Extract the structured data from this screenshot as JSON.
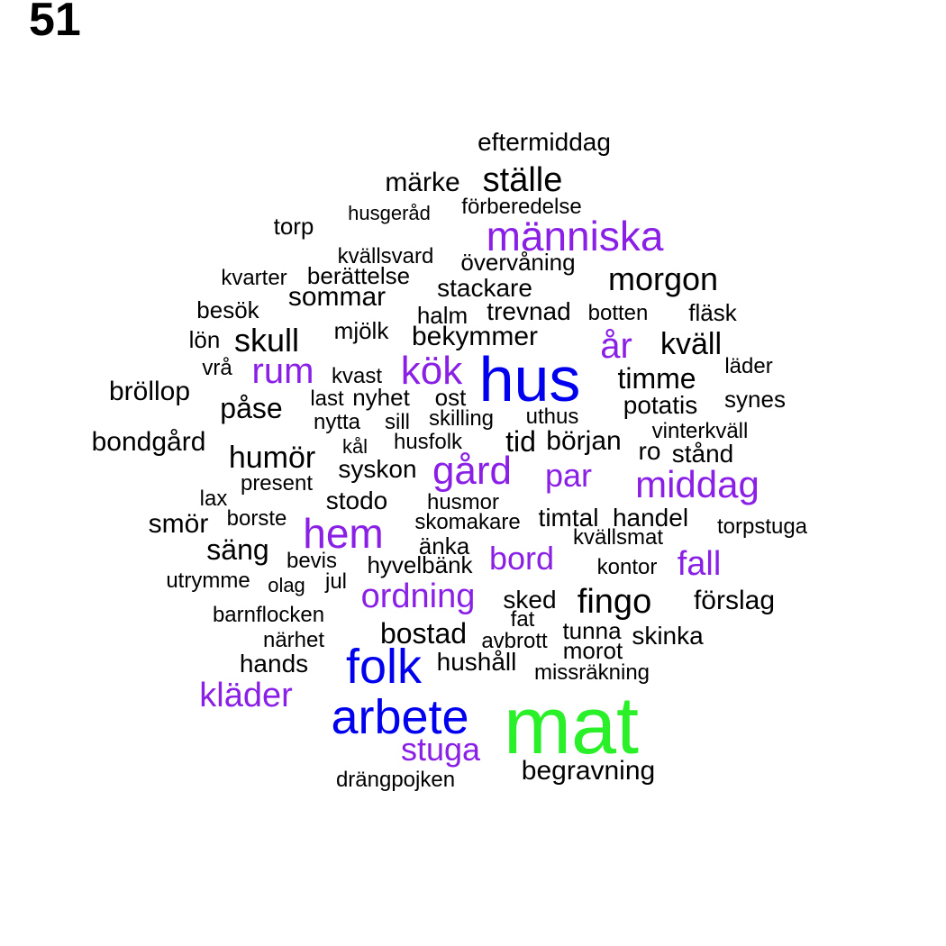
{
  "page_number": "51",
  "colors": {
    "large": "#2af02a",
    "mid": "#0000ee",
    "accent": "#8a1fe6",
    "base": "#000000"
  },
  "words": [
    {
      "t": "mat",
      "c": "large"
    },
    {
      "t": "hus",
      "c": "mid"
    },
    {
      "t": "arbete",
      "c": "mid"
    },
    {
      "t": "folk",
      "c": "mid"
    },
    {
      "t": "människa",
      "c": "accent"
    },
    {
      "t": "kök",
      "c": "accent"
    },
    {
      "t": "gård",
      "c": "accent"
    },
    {
      "t": "hem",
      "c": "accent"
    },
    {
      "t": "middag",
      "c": "accent"
    },
    {
      "t": "ordning",
      "c": "accent"
    },
    {
      "t": "kläder",
      "c": "accent"
    },
    {
      "t": "stuga",
      "c": "accent"
    },
    {
      "t": "rum",
      "c": "accent"
    },
    {
      "t": "år",
      "c": "accent"
    },
    {
      "t": "par",
      "c": "accent"
    },
    {
      "t": "bord",
      "c": "accent"
    },
    {
      "t": "fall",
      "c": "accent"
    },
    {
      "t": "eftermiddag",
      "c": "base"
    },
    {
      "t": "märke",
      "c": "base"
    },
    {
      "t": "ställe",
      "c": "base"
    },
    {
      "t": "husgeråd",
      "c": "base"
    },
    {
      "t": "förberedelse",
      "c": "base"
    },
    {
      "t": "torp",
      "c": "base"
    },
    {
      "t": "kvällsvard",
      "c": "base"
    },
    {
      "t": "övervåning",
      "c": "base"
    },
    {
      "t": "kvarter",
      "c": "base"
    },
    {
      "t": "berättelse",
      "c": "base"
    },
    {
      "t": "morgon",
      "c": "base"
    },
    {
      "t": "stackare",
      "c": "base"
    },
    {
      "t": "sommar",
      "c": "base"
    },
    {
      "t": "besök",
      "c": "base"
    },
    {
      "t": "halm",
      "c": "base"
    },
    {
      "t": "trevnad",
      "c": "base"
    },
    {
      "t": "botten",
      "c": "base"
    },
    {
      "t": "fläsk",
      "c": "base"
    },
    {
      "t": "lön",
      "c": "base"
    },
    {
      "t": "skull",
      "c": "base"
    },
    {
      "t": "mjölk",
      "c": "base"
    },
    {
      "t": "bekymmer",
      "c": "base"
    },
    {
      "t": "kväll",
      "c": "base"
    },
    {
      "t": "vrå",
      "c": "base"
    },
    {
      "t": "kvast",
      "c": "base"
    },
    {
      "t": "läder",
      "c": "base"
    },
    {
      "t": "bröllop",
      "c": "base"
    },
    {
      "t": "timme",
      "c": "base"
    },
    {
      "t": "last",
      "c": "base"
    },
    {
      "t": "nyhet",
      "c": "base"
    },
    {
      "t": "ost",
      "c": "base"
    },
    {
      "t": "påse",
      "c": "base"
    },
    {
      "t": "synes",
      "c": "base"
    },
    {
      "t": "potatis",
      "c": "base"
    },
    {
      "t": "nytta",
      "c": "base"
    },
    {
      "t": "sill",
      "c": "base"
    },
    {
      "t": "skilling",
      "c": "base"
    },
    {
      "t": "uthus",
      "c": "base"
    },
    {
      "t": "vinterkväll",
      "c": "base"
    },
    {
      "t": "bondgård",
      "c": "base"
    },
    {
      "t": "kål",
      "c": "base"
    },
    {
      "t": "husfolk",
      "c": "base"
    },
    {
      "t": "tid",
      "c": "base"
    },
    {
      "t": "början",
      "c": "base"
    },
    {
      "t": "ro",
      "c": "base"
    },
    {
      "t": "stånd",
      "c": "base"
    },
    {
      "t": "humör",
      "c": "base"
    },
    {
      "t": "syskon",
      "c": "base"
    },
    {
      "t": "present",
      "c": "base"
    },
    {
      "t": "lax",
      "c": "base"
    },
    {
      "t": "stodo",
      "c": "base"
    },
    {
      "t": "husmor",
      "c": "base"
    },
    {
      "t": "smör",
      "c": "base"
    },
    {
      "t": "borste",
      "c": "base"
    },
    {
      "t": "skomakare",
      "c": "base"
    },
    {
      "t": "timtal",
      "c": "base"
    },
    {
      "t": "handel",
      "c": "base"
    },
    {
      "t": "torpstuga",
      "c": "base"
    },
    {
      "t": "kvällsmat",
      "c": "base"
    },
    {
      "t": "säng",
      "c": "base"
    },
    {
      "t": "änka",
      "c": "base"
    },
    {
      "t": "bevis",
      "c": "base"
    },
    {
      "t": "hyvelbänk",
      "c": "base"
    },
    {
      "t": "kontor",
      "c": "base"
    },
    {
      "t": "utrymme",
      "c": "base"
    },
    {
      "t": "olag",
      "c": "base"
    },
    {
      "t": "jul",
      "c": "base"
    },
    {
      "t": "sked",
      "c": "base"
    },
    {
      "t": "fingo",
      "c": "base"
    },
    {
      "t": "förslag",
      "c": "base"
    },
    {
      "t": "barnflocken",
      "c": "base"
    },
    {
      "t": "fat",
      "c": "base"
    },
    {
      "t": "bostad",
      "c": "base"
    },
    {
      "t": "tunna",
      "c": "base"
    },
    {
      "t": "skinka",
      "c": "base"
    },
    {
      "t": "närhet",
      "c": "base"
    },
    {
      "t": "avbrott",
      "c": "base"
    },
    {
      "t": "morot",
      "c": "base"
    },
    {
      "t": "hands",
      "c": "base"
    },
    {
      "t": "hushåll",
      "c": "base"
    },
    {
      "t": "missräkning",
      "c": "base"
    },
    {
      "t": "begravning",
      "c": "base"
    },
    {
      "t": "drängpojken",
      "c": "base"
    }
  ]
}
